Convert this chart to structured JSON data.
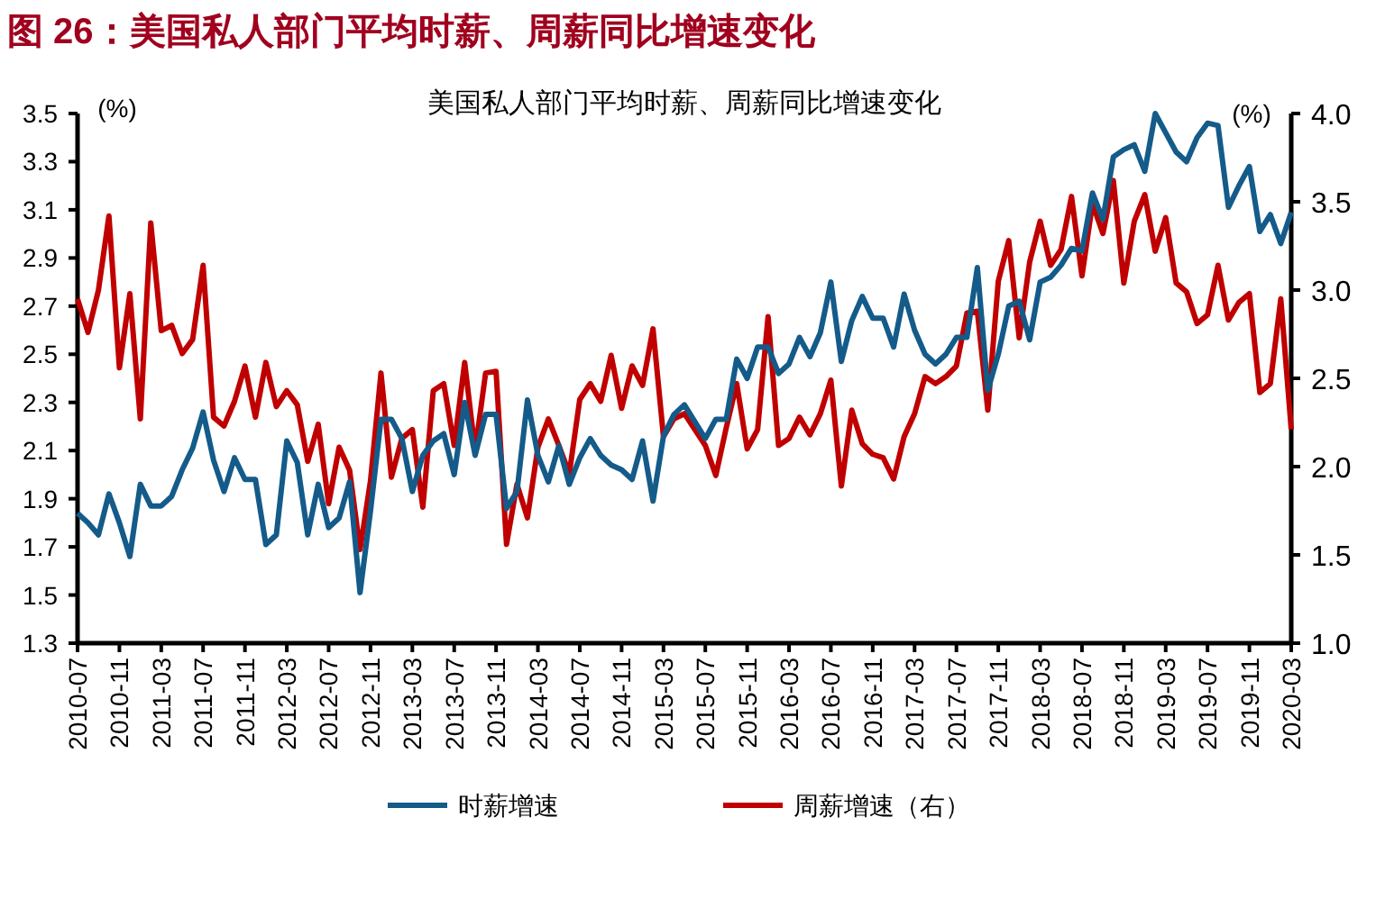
{
  "chart_data": {
    "type": "line",
    "title": "图 26：美国私人部门平均时薪、周薪同比增速变化",
    "subtitle": "美国私人部门平均时薪、周薪同比增速变化",
    "ylabel": "(%)",
    "y2label": "(%)",
    "x": [
      "2010-07",
      "2010-08",
      "2010-09",
      "2010-10",
      "2010-11",
      "2010-12",
      "2011-01",
      "2011-02",
      "2011-03",
      "2011-04",
      "2011-05",
      "2011-06",
      "2011-07",
      "2011-08",
      "2011-09",
      "2011-10",
      "2011-11",
      "2011-12",
      "2012-01",
      "2012-02",
      "2012-03",
      "2012-04",
      "2012-05",
      "2012-06",
      "2012-07",
      "2012-08",
      "2012-09",
      "2012-10",
      "2012-11",
      "2012-12",
      "2013-01",
      "2013-02",
      "2013-03",
      "2013-04",
      "2013-05",
      "2013-06",
      "2013-07",
      "2013-08",
      "2013-09",
      "2013-10",
      "2013-11",
      "2013-12",
      "2014-01",
      "2014-02",
      "2014-03",
      "2014-04",
      "2014-05",
      "2014-06",
      "2014-07",
      "2014-08",
      "2014-09",
      "2014-10",
      "2014-11",
      "2014-12",
      "2015-01",
      "2015-02",
      "2015-03",
      "2015-04",
      "2015-05",
      "2015-06",
      "2015-07",
      "2015-08",
      "2015-09",
      "2015-10",
      "2015-11",
      "2015-12",
      "2016-01",
      "2016-02",
      "2016-03",
      "2016-04",
      "2016-05",
      "2016-06",
      "2016-07",
      "2016-08",
      "2016-09",
      "2016-10",
      "2016-11",
      "2016-12",
      "2017-01",
      "2017-02",
      "2017-03",
      "2017-04",
      "2017-05",
      "2017-06",
      "2017-07",
      "2017-08",
      "2017-09",
      "2017-10",
      "2017-11",
      "2017-12",
      "2018-01",
      "2018-02",
      "2018-03",
      "2018-04",
      "2018-05",
      "2018-06",
      "2018-07",
      "2018-08",
      "2018-09",
      "2018-10",
      "2018-11",
      "2018-12",
      "2019-01",
      "2019-02",
      "2019-03",
      "2019-04",
      "2019-05",
      "2019-06",
      "2019-07",
      "2019-08",
      "2019-09",
      "2019-10",
      "2019-11",
      "2019-12",
      "2020-01",
      "2020-02",
      "2020-03"
    ],
    "xlim": [
      "2010-07",
      "2020-03"
    ],
    "xticks": [
      "2010-07",
      "2010-11",
      "2011-03",
      "2011-07",
      "2011-11",
      "2012-03",
      "2012-07",
      "2012-11",
      "2013-03",
      "2013-07",
      "2013-11",
      "2014-03",
      "2014-07",
      "2014-11",
      "2015-03",
      "2015-07",
      "2015-11",
      "2016-03",
      "2016-07",
      "2016-11",
      "2017-03",
      "2017-07",
      "2017-11",
      "2018-03",
      "2018-07",
      "2018-11",
      "2019-03",
      "2019-07",
      "2019-11",
      "2020-03"
    ],
    "ylim": [
      1.3,
      3.5
    ],
    "yticks": [
      1.3,
      1.5,
      1.7,
      1.9,
      2.1,
      2.3,
      2.5,
      2.7,
      2.9,
      3.1,
      3.3,
      3.5
    ],
    "y2lim": [
      1.0,
      4.0
    ],
    "y2ticks": [
      {
        "value": 1,
        "label": "1.0"
      },
      1.5,
      {
        "value": 2,
        "label": "2.0"
      },
      2.5,
      {
        "value": 3,
        "label": "3.0"
      },
      3.5,
      {
        "value": 4,
        "label": "4.0"
      }
    ],
    "legend": "bottom",
    "series": [
      {
        "name": "时薪增速",
        "color": "#145b8a",
        "values": [
          1.84,
          1.8,
          1.75,
          1.92,
          1.8,
          1.66,
          1.96,
          1.87,
          1.87,
          1.91,
          2.02,
          2.11,
          2.26,
          2.06,
          1.93,
          2.07,
          1.98,
          1.98,
          1.71,
          1.75,
          2.14,
          2.05,
          1.75,
          1.96,
          1.78,
          1.82,
          1.97,
          1.51,
          1.85,
          2.23,
          2.23,
          2.15,
          1.93,
          2.08,
          2.14,
          2.17,
          2.0,
          2.3,
          2.08,
          2.25,
          2.25,
          1.86,
          1.93,
          2.31,
          2.08,
          1.97,
          2.12,
          1.96,
          2.07,
          2.15,
          2.08,
          2.04,
          2.02,
          1.98,
          2.14,
          1.89,
          2.16,
          2.25,
          2.29,
          2.22,
          2.15,
          2.23,
          2.23,
          2.48,
          2.4,
          2.53,
          2.53,
          2.42,
          2.46,
          2.57,
          2.49,
          2.59,
          2.8,
          2.47,
          2.64,
          2.74,
          2.65,
          2.65,
          2.53,
          2.75,
          2.6,
          2.5,
          2.46,
          2.5,
          2.57,
          2.57,
          2.86,
          2.35,
          2.5,
          2.7,
          2.72,
          2.56,
          2.8,
          2.82,
          2.87,
          2.94,
          2.93,
          3.17,
          3.06,
          3.32,
          3.35,
          3.37,
          3.26,
          3.5,
          3.42,
          3.34,
          3.3,
          3.4,
          3.46,
          3.45,
          3.11,
          3.2,
          3.28,
          3.01,
          3.08,
          2.96,
          3.09
        ]
      },
      {
        "name": "周薪增速（右）",
        "color": "#c00000",
        "axis": "y2",
        "values": [
          2.95,
          2.76,
          3.0,
          3.42,
          2.56,
          2.98,
          2.27,
          3.38,
          2.77,
          2.8,
          2.64,
          2.72,
          3.14,
          2.28,
          2.23,
          2.37,
          2.57,
          2.28,
          2.59,
          2.34,
          2.43,
          2.35,
          2.03,
          2.24,
          1.79,
          2.11,
          1.98,
          1.53,
          1.92,
          2.53,
          1.94,
          2.16,
          2.21,
          1.77,
          2.43,
          2.47,
          2.12,
          2.59,
          2.09,
          2.53,
          2.54,
          1.56,
          1.9,
          1.71,
          2.11,
          2.27,
          2.12,
          1.96,
          2.38,
          2.47,
          2.37,
          2.63,
          2.33,
          2.57,
          2.46,
          2.78,
          2.17,
          2.27,
          2.3,
          2.21,
          2.12,
          1.95,
          2.22,
          2.47,
          2.1,
          2.21,
          2.85,
          2.12,
          2.16,
          2.28,
          2.18,
          2.3,
          2.49,
          1.89,
          2.32,
          2.13,
          2.07,
          2.05,
          1.93,
          2.17,
          2.3,
          2.51,
          2.47,
          2.51,
          2.57,
          2.87,
          2.88,
          2.32,
          3.05,
          3.28,
          2.73,
          3.16,
          3.39,
          3.14,
          3.23,
          3.53,
          3.08,
          3.49,
          3.32,
          3.62,
          3.04,
          3.39,
          3.54,
          3.22,
          3.41,
          3.04,
          2.99,
          2.81,
          2.86,
          3.14,
          2.83,
          2.93,
          2.98,
          2.42,
          2.47,
          2.95,
          2.21
        ]
      }
    ]
  }
}
